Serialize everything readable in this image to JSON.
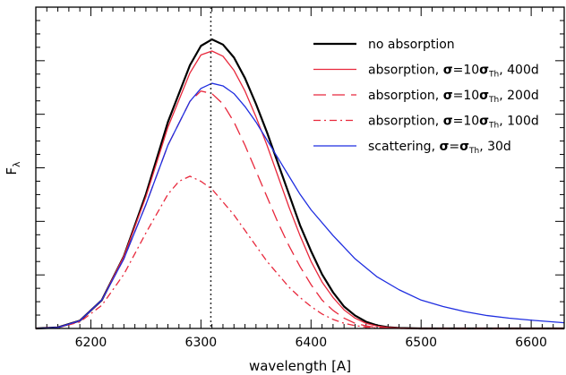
{
  "chart_data": {
    "type": "line",
    "xlabel": "wavelength [A]",
    "ylabel": "F",
    "ylabel_subscript": "λ",
    "xlim": [
      6150,
      6630
    ],
    "ylim": [
      0,
      1.245
    ],
    "x_ticks": [
      6200,
      6300,
      6400,
      6500,
      6600
    ],
    "x_tick_labels": [
      "6200",
      "6300",
      "6400",
      "6500",
      "6600"
    ],
    "reference_line_x": 6309,
    "legend_position": "top-right",
    "series": [
      {
        "name": "no absorption",
        "color": "#000000",
        "dash": "solid",
        "x": [
          6150,
          6170,
          6190,
          6210,
          6230,
          6250,
          6270,
          6290,
          6300,
          6310,
          6320,
          6330,
          6340,
          6350,
          6360,
          6370,
          6380,
          6390,
          6400,
          6410,
          6420,
          6430,
          6440,
          6450,
          6460,
          6470,
          6480,
          6490,
          6500,
          6520,
          6550,
          6600,
          6630
        ],
        "y": [
          0,
          0.004,
          0.03,
          0.11,
          0.28,
          0.52,
          0.8,
          1.02,
          1.095,
          1.12,
          1.1,
          1.05,
          0.97,
          0.87,
          0.76,
          0.64,
          0.52,
          0.4,
          0.3,
          0.21,
          0.14,
          0.085,
          0.05,
          0.026,
          0.012,
          0.005,
          0.002,
          0.001,
          0,
          0,
          0,
          0,
          0
        ]
      },
      {
        "name": "absorption, σ=10σ_Th, 400d",
        "legend_parts": [
          "absorption, ",
          "σ",
          "=10",
          "σ",
          "Th",
          ", 400d"
        ],
        "color": "#e8283c",
        "dash": "solid",
        "x": [
          6150,
          6170,
          6190,
          6210,
          6230,
          6250,
          6270,
          6290,
          6300,
          6310,
          6320,
          6330,
          6340,
          6350,
          6360,
          6370,
          6380,
          6390,
          6400,
          6410,
          6420,
          6430,
          6440,
          6450,
          6460,
          6470,
          6480,
          6490,
          6500,
          6520,
          6550,
          6600,
          6630
        ],
        "y": [
          0,
          0.004,
          0.03,
          0.11,
          0.28,
          0.51,
          0.78,
          0.99,
          1.06,
          1.075,
          1.055,
          1.0,
          0.92,
          0.82,
          0.71,
          0.59,
          0.47,
          0.36,
          0.26,
          0.18,
          0.12,
          0.072,
          0.04,
          0.02,
          0.009,
          0.004,
          0.0015,
          0.0005,
          0,
          0,
          0,
          0,
          0
        ]
      },
      {
        "name": "absorption, σ=10σ_Th, 200d",
        "legend_parts": [
          "absorption, ",
          "σ",
          "=10",
          "σ",
          "Th",
          ", 200d"
        ],
        "color": "#e8283c",
        "dash": "long-dash",
        "x": [
          6150,
          6170,
          6190,
          6210,
          6230,
          6250,
          6270,
          6290,
          6300,
          6310,
          6320,
          6330,
          6340,
          6350,
          6360,
          6370,
          6380,
          6390,
          6400,
          6410,
          6420,
          6430,
          6440,
          6450,
          6460,
          6470,
          6480,
          6490,
          6500,
          6520,
          6550,
          6600,
          6630
        ],
        "y": [
          0,
          0.004,
          0.03,
          0.11,
          0.27,
          0.48,
          0.71,
          0.88,
          0.92,
          0.91,
          0.87,
          0.8,
          0.71,
          0.61,
          0.51,
          0.41,
          0.32,
          0.24,
          0.17,
          0.11,
          0.07,
          0.04,
          0.02,
          0.01,
          0.004,
          0.0015,
          0.0005,
          0,
          0,
          0,
          0,
          0,
          0
        ]
      },
      {
        "name": "absorption, σ=10σ_Th, 100d",
        "legend_parts": [
          "absorption, ",
          "σ",
          "=10",
          "σ",
          "Th",
          ", 100d"
        ],
        "color": "#e8283c",
        "dash": "dash-dot",
        "x": [
          6150,
          6170,
          6190,
          6210,
          6230,
          6250,
          6270,
          6280,
          6290,
          6300,
          6310,
          6320,
          6330,
          6340,
          6350,
          6360,
          6370,
          6380,
          6390,
          6400,
          6410,
          6420,
          6430,
          6440,
          6450,
          6460,
          6470,
          6480,
          6490,
          6500,
          6550,
          6600,
          6630
        ],
        "y": [
          0,
          0.003,
          0.025,
          0.09,
          0.21,
          0.37,
          0.52,
          0.57,
          0.59,
          0.57,
          0.54,
          0.49,
          0.44,
          0.38,
          0.32,
          0.26,
          0.21,
          0.16,
          0.12,
          0.085,
          0.056,
          0.035,
          0.02,
          0.011,
          0.005,
          0.002,
          0.001,
          0.0003,
          0,
          0,
          0,
          0,
          0
        ]
      },
      {
        "name": "scattering, σ=σ_Th, 30d",
        "legend_parts": [
          "scattering, ",
          "σ",
          "=",
          "σ",
          "Th",
          ", 30d"
        ],
        "color": "#1f2ee0",
        "dash": "solid",
        "x": [
          6150,
          6170,
          6190,
          6210,
          6230,
          6250,
          6270,
          6290,
          6300,
          6310,
          6320,
          6330,
          6340,
          6350,
          6360,
          6370,
          6380,
          6390,
          6400,
          6420,
          6440,
          6460,
          6480,
          6500,
          6520,
          6540,
          6560,
          6580,
          6600,
          6630
        ],
        "y": [
          0,
          0.004,
          0.03,
          0.11,
          0.27,
          0.48,
          0.71,
          0.88,
          0.93,
          0.95,
          0.94,
          0.91,
          0.86,
          0.8,
          0.73,
          0.66,
          0.59,
          0.52,
          0.46,
          0.36,
          0.27,
          0.2,
          0.15,
          0.11,
          0.085,
          0.065,
          0.05,
          0.04,
          0.032,
          0.022
        ]
      }
    ]
  }
}
